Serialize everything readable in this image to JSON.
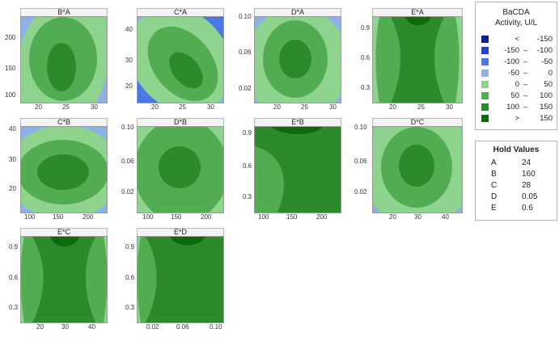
{
  "chart_data": {
    "type": "contour",
    "legend": {
      "title_line1": "BaCDA",
      "title_line2": "Activity, U/L",
      "bins": [
        {
          "lo": "<",
          "hi": "-150",
          "color": "#0b1f8f"
        },
        {
          "lo": "-150",
          "hi": "-100",
          "color": "#1f3fd6"
        },
        {
          "lo": "-100",
          "hi": "-50",
          "color": "#4a78e6"
        },
        {
          "lo": "-50",
          "hi": "0",
          "color": "#8fb0e6"
        },
        {
          "lo": "0",
          "hi": "50",
          "color": "#8ed38e"
        },
        {
          "lo": "50",
          "hi": "100",
          "color": "#52ad52"
        },
        {
          "lo": "100",
          "hi": "150",
          "color": "#2b8a2b"
        },
        {
          "lo": ">",
          "hi": "150",
          "color": "#0e6a0e"
        }
      ]
    },
    "hold_values": {
      "title": "Hold Values",
      "items": [
        {
          "factor": "A",
          "value": "24"
        },
        {
          "factor": "B",
          "value": "160"
        },
        {
          "factor": "C",
          "value": "28"
        },
        {
          "factor": "D",
          "value": "0.05"
        },
        {
          "factor": "E",
          "value": "0.6"
        }
      ]
    },
    "panels": [
      {
        "title": "B*A",
        "xticks": [
          "20",
          "25",
          "30"
        ],
        "yticks": [
          "200",
          "150",
          "100"
        ]
      },
      {
        "title": "C*A",
        "xticks": [
          "20",
          "25",
          "30"
        ],
        "yticks": [
          "40",
          "30",
          "20"
        ]
      },
      {
        "title": "D*A",
        "xticks": [
          "20",
          "25",
          "30"
        ],
        "yticks": [
          "0.10",
          "0.06",
          "0.02"
        ]
      },
      {
        "title": "E*A",
        "xticks": [
          "20",
          "25",
          "30"
        ],
        "yticks": [
          "0.9",
          "0.6",
          "0.3"
        ]
      },
      {
        "title": "C*B",
        "xticks": [
          "100",
          "150",
          "200"
        ],
        "yticks": [
          "40",
          "30",
          "20"
        ]
      },
      {
        "title": "D*B",
        "xticks": [
          "100",
          "150",
          "200"
        ],
        "yticks": [
          "0.10",
          "0.06",
          "0.02"
        ]
      },
      {
        "title": "E*B",
        "xticks": [
          "100",
          "150",
          "200"
        ],
        "yticks": [
          "0.9",
          "0.6",
          "0.3"
        ]
      },
      {
        "title": "D*C",
        "xticks": [
          "20",
          "30",
          "40"
        ],
        "yticks": [
          "0.10",
          "0.06",
          "0.02"
        ]
      },
      {
        "title": "E*C",
        "xticks": [
          "20",
          "30",
          "40"
        ],
        "yticks": [
          "0.9",
          "0.6",
          "0.3"
        ]
      },
      {
        "title": "E*D",
        "xticks": [
          "0.02",
          "0.06",
          "0.10"
        ],
        "yticks": [
          "0.9",
          "0.6",
          "0.3"
        ]
      }
    ]
  }
}
